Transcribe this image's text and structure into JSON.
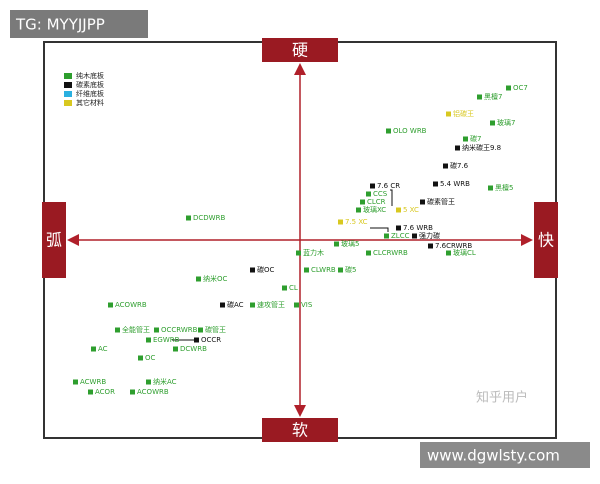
{
  "watermark": "TG: MYYJJPP",
  "site": "www.dgwlsty.com",
  "credit": "知乎用户",
  "axes": {
    "top": "硬",
    "bottom": "软",
    "left": "弧",
    "right": "快"
  },
  "legend": [
    {
      "label": "纯木底板",
      "color": "#2e9e2e",
      "points": [
        "OC7",
        "黑檀7",
        "玻璃7",
        "OLO WRB",
        "碳7",
        "黑檀5",
        "CCS",
        "CLCR",
        "玻璃XC",
        "ZLCC",
        "玻璃5",
        "CLCRWRB",
        "玻璃CL",
        "蓝力木",
        "CLWRB",
        "碳5",
        "CL",
        "纳米OC",
        "速攻管王",
        "VIS",
        "DCDWRB",
        "ACOWRB",
        "全能管王",
        "OCCRWRB",
        "碳管王",
        "EGWRB",
        "DCWRB",
        "AC",
        "OC",
        "纳米AC",
        "ACWRB",
        "ACOR",
        "ACOWRB"
      ]
    },
    {
      "label": "碳素底板",
      "color": "#111111",
      "points": [
        "纳米碳王9.8",
        "碳7.6",
        "5.4 WRB",
        "7.6 CR",
        "碳素管王",
        "7.6 WRB",
        "强力碳",
        "7.6CRWRB",
        "碳OC",
        "碳AC",
        "OCCR"
      ]
    },
    {
      "label": "纤维底板",
      "color": "#2ab0e0",
      "points": []
    },
    {
      "label": "其它材料",
      "color": "#d8c820",
      "points": [
        "铝碳王",
        "7.5 XC",
        "5 XC"
      ]
    }
  ]
}
